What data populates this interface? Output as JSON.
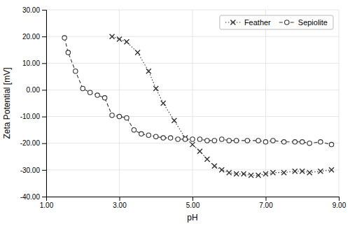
{
  "chart_data": {
    "type": "line",
    "xlabel": "pH",
    "ylabel": "Zeta Potential [mV]",
    "series": [
      {
        "name": "Feather",
        "color": "#333333",
        "marker": "x",
        "line_style": "dotted",
        "x": [
          2.8,
          3.0,
          3.2,
          3.5,
          3.8,
          4.0,
          4.2,
          4.5,
          4.8,
          5.0,
          5.2,
          5.4,
          5.6,
          5.8,
          6.0,
          6.2,
          6.4,
          6.6,
          6.8,
          7.0,
          7.2,
          7.5,
          7.8,
          8.0,
          8.2,
          8.5,
          8.8
        ],
        "values": [
          20.0,
          19.0,
          18.0,
          14.0,
          7.0,
          0.5,
          -5.0,
          -11.5,
          -18.0,
          -20.5,
          -23.0,
          -26.0,
          -28.5,
          -30.0,
          -31.0,
          -31.5,
          -31.5,
          -32.0,
          -32.0,
          -31.5,
          -31.0,
          -31.0,
          -30.5,
          -30.5,
          -31.0,
          -30.5,
          -30.0
        ]
      },
      {
        "name": "Sepiolite",
        "color": "#333333",
        "marker": "o",
        "line_style": "dashed",
        "x": [
          1.5,
          1.6,
          1.8,
          2.0,
          2.2,
          2.4,
          2.6,
          2.8,
          3.0,
          3.2,
          3.4,
          3.6,
          3.8,
          4.0,
          4.2,
          4.4,
          4.6,
          4.8,
          5.0,
          5.2,
          5.4,
          5.6,
          5.8,
          6.0,
          6.2,
          6.5,
          6.8,
          7.0,
          7.2,
          7.5,
          7.8,
          8.0,
          8.2,
          8.5,
          8.8
        ],
        "values": [
          19.5,
          14.0,
          7.0,
          0.5,
          -1.0,
          -2.0,
          -3.0,
          -9.5,
          -10.0,
          -10.5,
          -15.0,
          -16.5,
          -17.0,
          -17.5,
          -18.0,
          -18.0,
          -18.5,
          -18.5,
          -18.5,
          -18.5,
          -19.0,
          -19.0,
          -18.5,
          -19.0,
          -19.0,
          -19.0,
          -19.0,
          -19.5,
          -19.0,
          -19.5,
          -19.5,
          -19.5,
          -20.0,
          -19.5,
          -20.5
        ]
      }
    ],
    "xlim": [
      1.0,
      9.0
    ],
    "ylim": [
      -40.0,
      30.0
    ],
    "xticks": [
      {
        "value": 1.0,
        "label": "1.00"
      },
      {
        "value": 3.0,
        "label": "3.00"
      },
      {
        "value": 5.0,
        "label": "5.00"
      },
      {
        "value": 7.0,
        "label": "7.00"
      },
      {
        "value": 9.0,
        "label": "9.00"
      }
    ],
    "yticks": [
      {
        "value": -40.0,
        "label": "-40.00"
      },
      {
        "value": -30.0,
        "label": "-30.00"
      },
      {
        "value": -20.0,
        "label": "-20.00"
      },
      {
        "value": -10.0,
        "label": "-10.00"
      },
      {
        "value": 0.0,
        "label": "0.00"
      },
      {
        "value": 10.0,
        "label": "10.00"
      },
      {
        "value": 20.0,
        "label": "20.00"
      },
      {
        "value": 30.0,
        "label": "30.00"
      }
    ],
    "grid": true,
    "legend": "upper right"
  }
}
